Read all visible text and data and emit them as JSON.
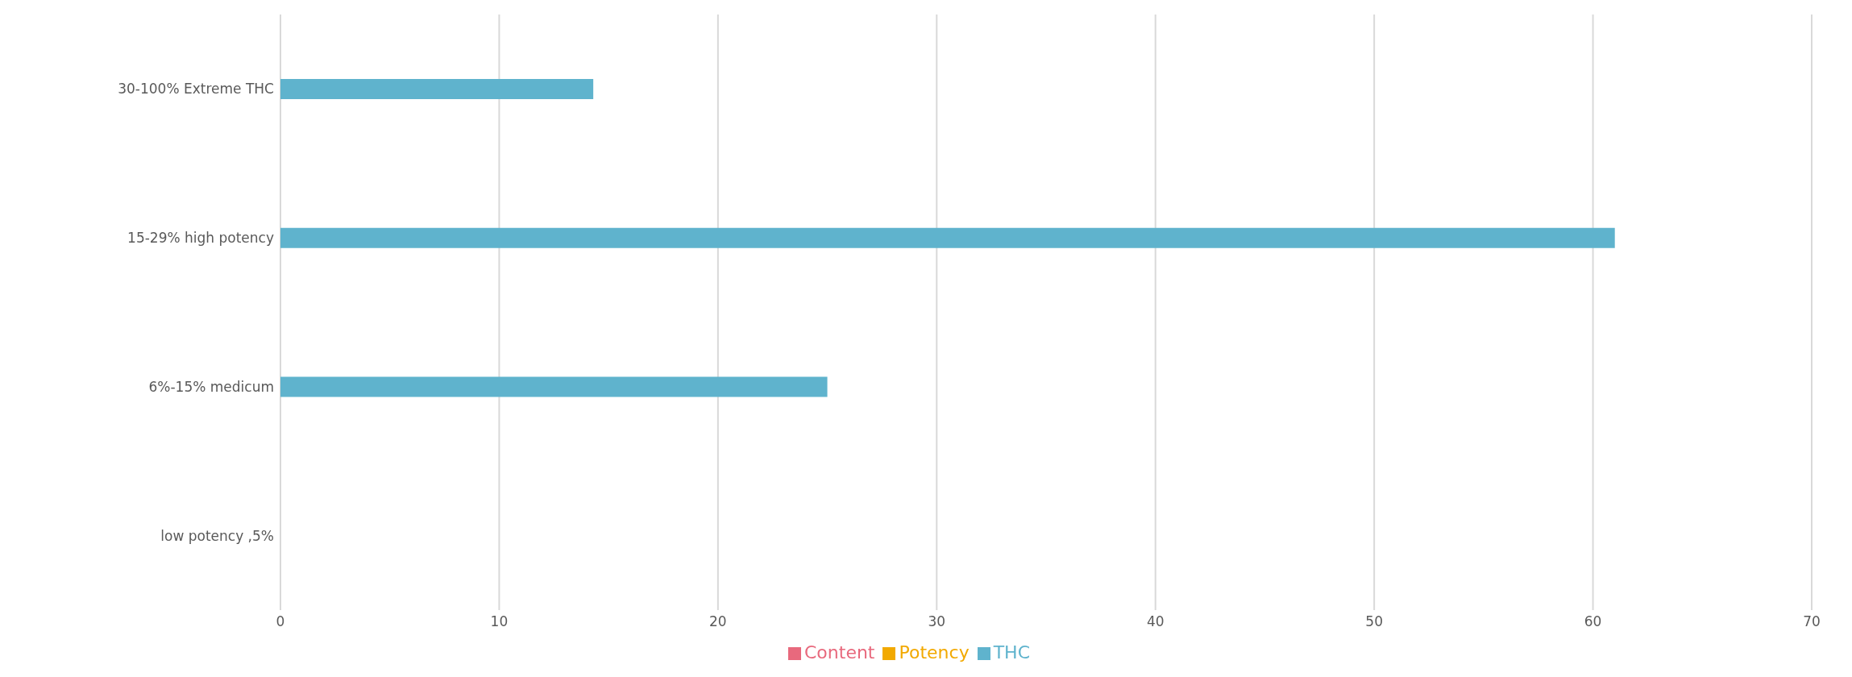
{
  "chart_data": {
    "type": "bar",
    "orientation": "horizontal",
    "categories": [
      "30-100% Extreme THC",
      "15-29% high potency",
      "6%-15% medicum",
      "low potency ,5%"
    ],
    "series": [
      {
        "name": "Content",
        "color": "#e8697d",
        "values": [
          null,
          null,
          null,
          null
        ]
      },
      {
        "name": "THC",
        "color": "#5fb3cd",
        "values": [
          14.3,
          61,
          25,
          null
        ]
      },
      {
        "name": "Potency",
        "color": "#f2a900",
        "values": [
          null,
          null,
          null,
          null
        ]
      }
    ],
    "xlim": [
      0,
      70
    ],
    "xticks": [
      0,
      10,
      20,
      30,
      40,
      50,
      60,
      70
    ],
    "grid": "x",
    "legend": "bottom"
  }
}
